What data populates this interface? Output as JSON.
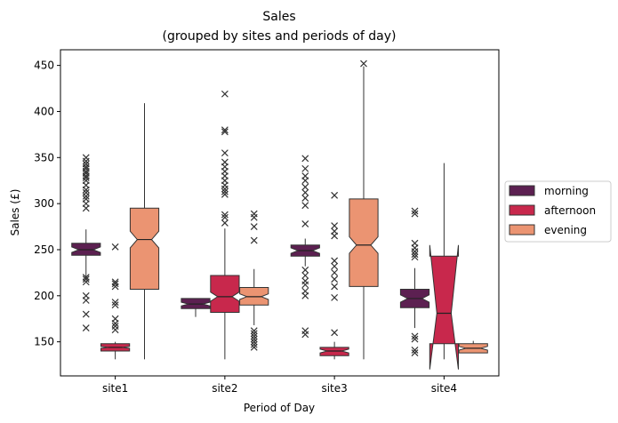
{
  "chart_data": {
    "type": "box",
    "title_line1": "Sales",
    "title_line2": "(grouped by sites and periods of day)",
    "xlabel": "Period of Day",
    "ylabel": "Sales (£)",
    "ylim": [
      113,
      467
    ],
    "yticks": [
      150,
      200,
      250,
      300,
      350,
      400,
      450
    ],
    "categories": [
      "site1",
      "site2",
      "site3",
      "site4"
    ],
    "legend": {
      "placement": "center-right",
      "entries": [
        "morning",
        "afternoon",
        "evening"
      ]
    },
    "series": [
      {
        "name": "morning",
        "color": "#5c2051",
        "boxes": [
          {
            "category": "site1",
            "whislo": 219,
            "q1": 244,
            "med": 250,
            "q3": 257,
            "whishi": 272,
            "notch_lo": 247,
            "notch_hi": 253,
            "fliers": [
              165,
              180,
              195,
              200,
              215,
              218,
              220,
              295,
              300,
              305,
              308,
              312,
              315,
              320,
              325,
              328,
              330,
              333,
              335,
              338,
              340,
              343,
              346,
              350
            ]
          },
          {
            "category": "site2",
            "whislo": 177,
            "q1": 186,
            "med": 191,
            "q3": 197,
            "whishi": 197,
            "notch_lo": 189,
            "notch_hi": 193,
            "fliers": []
          },
          {
            "category": "site3",
            "whislo": 232,
            "q1": 243,
            "med": 249,
            "q3": 255,
            "whishi": 262,
            "notch_lo": 246,
            "notch_hi": 252,
            "fliers": [
              158,
              162,
              200,
              205,
              212,
              216,
              222,
              228,
              278,
              298,
              306,
              312,
              318,
              325,
              330,
              338,
              349
            ]
          },
          {
            "category": "site4",
            "whislo": 165,
            "q1": 187,
            "med": 197,
            "q3": 207,
            "whishi": 230,
            "notch_lo": 193,
            "notch_hi": 201,
            "fliers": [
              138,
              141,
              153,
              156,
              242,
              245,
              248,
              252,
              257,
              289,
              292
            ]
          }
        ]
      },
      {
        "name": "afternoon",
        "color": "#c8284c",
        "boxes": [
          {
            "category": "site1",
            "whislo": 131,
            "q1": 140,
            "med": 144,
            "q3": 148,
            "whishi": 150,
            "notch_lo": 143,
            "notch_hi": 145,
            "fliers": [
              163,
              167,
              170,
              175,
              190,
              193,
              210,
              213,
              215,
              253
            ]
          },
          {
            "category": "site2",
            "whislo": 131,
            "q1": 182,
            "med": 199,
            "q3": 222,
            "whishi": 273,
            "notch_lo": 194,
            "notch_hi": 204,
            "fliers": [
              279,
              285,
              288,
              310,
              313,
              316,
              320,
              325,
              330,
              335,
              340,
              345,
              355,
              378,
              380,
              419
            ]
          },
          {
            "category": "site3",
            "whislo": 131,
            "q1": 135,
            "med": 140,
            "q3": 144,
            "whishi": 150,
            "notch_lo": 138,
            "notch_hi": 142,
            "fliers": [
              160,
              198,
              210,
              218,
              225,
              232,
              238,
              265,
              270,
              276,
              309
            ]
          },
          {
            "category": "site4",
            "whislo": 131,
            "q1": 148,
            "med": 181,
            "q3": 243,
            "whishi": 344,
            "notch_lo": 120,
            "notch_hi": 255,
            "fliers": []
          }
        ]
      },
      {
        "name": "evening",
        "color": "#eb9472",
        "boxes": [
          {
            "category": "site1",
            "whislo": 131,
            "q1": 207,
            "med": 261,
            "q3": 295,
            "whishi": 409,
            "notch_lo": 252,
            "notch_hi": 270,
            "fliers": []
          },
          {
            "category": "site2",
            "whislo": 168,
            "q1": 190,
            "med": 199,
            "q3": 209,
            "whishi": 229,
            "notch_lo": 196,
            "notch_hi": 202,
            "fliers": [
              144,
              147,
              150,
              153,
              156,
              159,
              162,
              260,
              275,
              285,
              289
            ]
          },
          {
            "category": "site3",
            "whislo": 131,
            "q1": 210,
            "med": 255,
            "q3": 305,
            "whishi": 449,
            "notch_lo": 246,
            "notch_hi": 264,
            "fliers": [
              452
            ]
          },
          {
            "category": "site4",
            "whislo": 138,
            "q1": 138,
            "med": 143,
            "q3": 148,
            "whishi": 151,
            "notch_lo": 141,
            "notch_hi": 145,
            "fliers": []
          }
        ]
      }
    ],
    "grid": false
  }
}
